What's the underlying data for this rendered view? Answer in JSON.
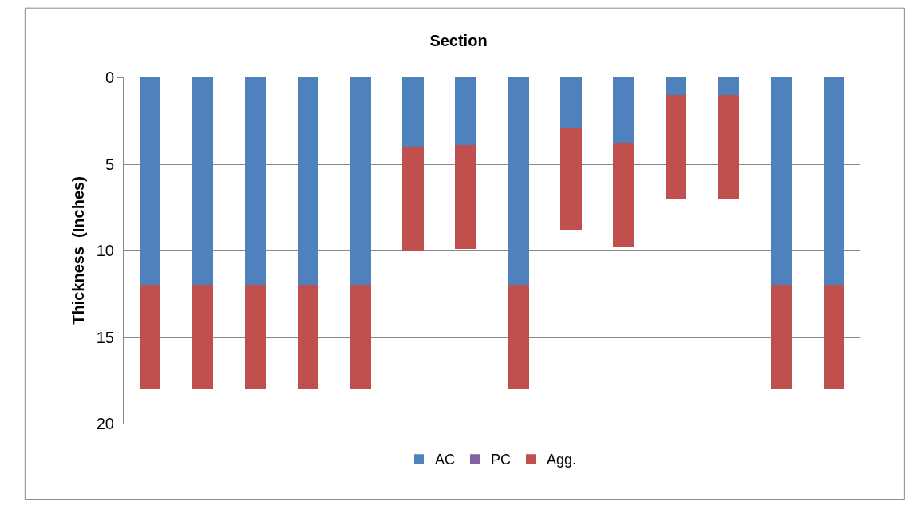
{
  "chart_data": {
    "type": "bar",
    "title": "Section",
    "ylabel": "Thickness  (Inches)",
    "stacked": true,
    "categories": [
      null,
      null,
      null,
      null,
      null,
      null,
      null,
      null,
      null,
      null,
      null,
      null,
      null,
      null
    ],
    "series": [
      {
        "name": "AC",
        "color": "#4f81bd",
        "values": [
          12,
          12,
          12,
          12,
          12,
          4,
          3.9,
          12,
          2.9,
          3.8,
          1,
          1,
          12,
          12
        ]
      },
      {
        "name": "PC",
        "color": "#8064a2",
        "values": [
          null,
          null,
          null,
          null,
          null,
          null,
          null,
          null,
          null,
          null,
          null,
          null,
          null,
          null
        ]
      },
      {
        "name": "Agg.",
        "color": "#c0504d",
        "values": [
          6,
          6,
          6,
          6,
          6,
          6,
          6,
          6,
          5.9,
          6,
          6,
          6,
          6,
          6
        ]
      }
    ],
    "ylim": [
      20,
      0
    ],
    "yticks": [
      0,
      5,
      10,
      15,
      20
    ],
    "grid": "y",
    "legend": "bottom"
  }
}
